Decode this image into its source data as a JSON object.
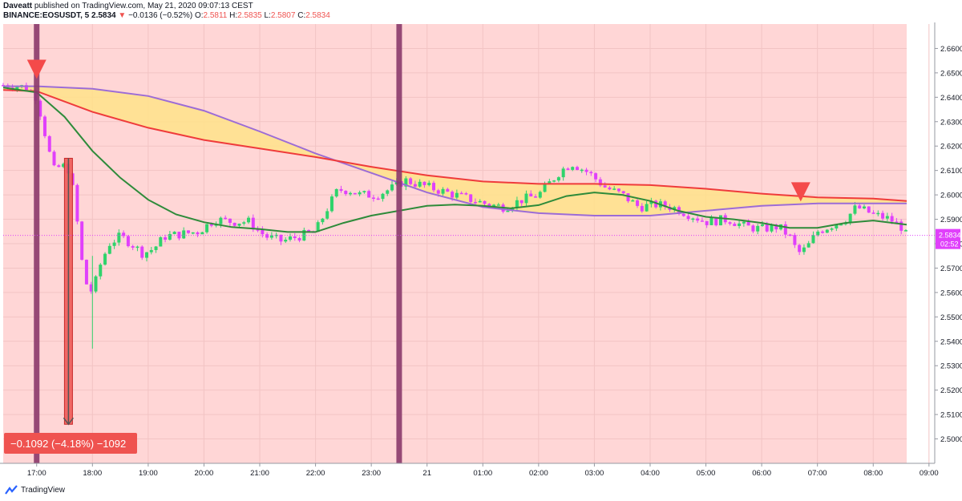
{
  "header": {
    "author": "Daveatt",
    "published": "published on TradingView.com, May 21, 2020 09:07:13 CEST",
    "symbol": "BINANCE:EOSUSDT, 5",
    "last": "2.5834",
    "change": "−0.0136 (−0.52%)",
    "o_label": "O:",
    "o": "2.5811",
    "h_label": "H:",
    "h": "2.5835",
    "l_label": "L:",
    "l": "2.5807",
    "c_label": "C:",
    "c": "2.5834"
  },
  "footer": {
    "brand": "TradingView"
  },
  "colors": {
    "background_zone": "#ffd6d6",
    "up": "#2fd36b",
    "down": "#e040fb",
    "slow_ma": "#9c6cd6",
    "red_ma": "#ef3b3b",
    "fast_ma": "#2e8b3a",
    "cloud": "#ffe38a",
    "vertical_bar": "#8b3a6b",
    "signal": "#f44a4a",
    "badge": "#e040fb",
    "measure": "#ef5350"
  },
  "chart_data": {
    "type": "candlestick",
    "ylim": [
      2.49,
      2.67
    ],
    "yticks": [
      "2.6600",
      "2.6500",
      "2.6400",
      "2.6300",
      "2.6200",
      "2.6100",
      "2.6000",
      "2.5900",
      "2.5800",
      "2.5700",
      "2.5600",
      "2.5500",
      "2.5400",
      "2.5300",
      "2.5200",
      "2.5100",
      "2.5000"
    ],
    "xlim": [
      -0.6,
      15.6
    ],
    "xticks": [
      {
        "label": "17:00",
        "x": 0
      },
      {
        "label": "18:00",
        "x": 1
      },
      {
        "label": "19:00",
        "x": 2
      },
      {
        "label": "20:00",
        "x": 3
      },
      {
        "label": "21:00",
        "x": 4
      },
      {
        "label": "22:00",
        "x": 5
      },
      {
        "label": "23:00",
        "x": 6
      },
      {
        "label": "21",
        "x": 7
      },
      {
        "label": "01:00",
        "x": 8
      },
      {
        "label": "02:00",
        "x": 9
      },
      {
        "label": "03:00",
        "x": 10
      },
      {
        "label": "04:00",
        "x": 11
      },
      {
        "label": "05:00",
        "x": 12
      },
      {
        "label": "06:00",
        "x": 13
      },
      {
        "label": "07:00",
        "x": 14
      },
      {
        "label": "08:00",
        "x": 15
      },
      {
        "label": "09:00",
        "x": 16
      }
    ],
    "price_closes": [
      [
        -0.6,
        2.645
      ],
      [
        -0.4,
        2.645
      ],
      [
        -0.2,
        2.644
      ],
      [
        0.0,
        2.64
      ],
      [
        0.15,
        2.625
      ],
      [
        0.3,
        2.61
      ],
      [
        0.45,
        2.612
      ],
      [
        0.6,
        2.61
      ],
      [
        0.75,
        2.585
      ],
      [
        0.85,
        2.565
      ],
      [
        1.0,
        2.56
      ],
      [
        1.15,
        2.572
      ],
      [
        1.3,
        2.58
      ],
      [
        1.5,
        2.583
      ],
      [
        1.7,
        2.58
      ],
      [
        1.9,
        2.576
      ],
      [
        2.1,
        2.578
      ],
      [
        2.3,
        2.583
      ],
      [
        2.6,
        2.584
      ],
      [
        2.9,
        2.585
      ],
      [
        3.2,
        2.59
      ],
      [
        3.5,
        2.589
      ],
      [
        3.8,
        2.589
      ],
      [
        4.1,
        2.583
      ],
      [
        4.4,
        2.581
      ],
      [
        4.7,
        2.583
      ],
      [
        5.0,
        2.585
      ],
      [
        5.2,
        2.594
      ],
      [
        5.4,
        2.602
      ],
      [
        5.6,
        2.602
      ],
      [
        5.8,
        2.6
      ],
      [
        6.1,
        2.6
      ],
      [
        6.4,
        2.603
      ],
      [
        6.6,
        2.606
      ],
      [
        6.9,
        2.604
      ],
      [
        7.2,
        2.602
      ],
      [
        7.5,
        2.6
      ],
      [
        7.8,
        2.598
      ],
      [
        8.1,
        2.596
      ],
      [
        8.4,
        2.595
      ],
      [
        8.7,
        2.598
      ],
      [
        9.0,
        2.6
      ],
      [
        9.2,
        2.605
      ],
      [
        9.4,
        2.61
      ],
      [
        9.6,
        2.613
      ],
      [
        9.9,
        2.609
      ],
      [
        10.2,
        2.603
      ],
      [
        10.5,
        2.6
      ],
      [
        10.8,
        2.595
      ],
      [
        11.1,
        2.596
      ],
      [
        11.4,
        2.595
      ],
      [
        11.7,
        2.592
      ],
      [
        12.0,
        2.589
      ],
      [
        12.4,
        2.59
      ],
      [
        12.7,
        2.587
      ],
      [
        13.0,
        2.586
      ],
      [
        13.3,
        2.587
      ],
      [
        13.5,
        2.583
      ],
      [
        13.65,
        2.576
      ],
      [
        13.8,
        2.578
      ],
      [
        14.0,
        2.585
      ],
      [
        14.3,
        2.588
      ],
      [
        14.5,
        2.59
      ],
      [
        14.7,
        2.595
      ],
      [
        15.0,
        2.592
      ],
      [
        15.3,
        2.59
      ],
      [
        15.5,
        2.587
      ],
      [
        15.6,
        2.583
      ]
    ],
    "series": [
      {
        "values": [
          [
            -0.6,
            2.6445
          ],
          [
            0,
            2.6445
          ],
          [
            1,
            2.6435
          ],
          [
            2,
            2.6405
          ],
          [
            3,
            2.6345
          ],
          [
            4,
            2.626
          ],
          [
            5,
            2.617
          ],
          [
            6,
            2.609
          ],
          [
            7,
            2.601
          ],
          [
            8,
            2.595
          ],
          [
            9,
            2.5925
          ],
          [
            10,
            2.5915
          ],
          [
            11,
            2.5915
          ],
          [
            12,
            2.5935
          ],
          [
            13,
            2.5955
          ],
          [
            14,
            2.5965
          ],
          [
            15,
            2.5965
          ],
          [
            15.6,
            2.5965
          ]
        ]
      },
      {
        "values": [
          [
            -0.6,
            2.643
          ],
          [
            0,
            2.6425
          ],
          [
            1,
            2.634
          ],
          [
            2,
            2.6275
          ],
          [
            3,
            2.6225
          ],
          [
            4,
            2.619
          ],
          [
            5,
            2.6155
          ],
          [
            6,
            2.6115
          ],
          [
            7,
            2.608
          ],
          [
            8,
            2.6055
          ],
          [
            9,
            2.6045
          ],
          [
            10,
            2.6045
          ],
          [
            11,
            2.604
          ],
          [
            12,
            2.6025
          ],
          [
            13,
            2.6005
          ],
          [
            14,
            2.599
          ],
          [
            15,
            2.5985
          ],
          [
            15.6,
            2.5975
          ]
        ]
      },
      {
        "values": [
          [
            -0.6,
            2.644
          ],
          [
            0,
            2.642
          ],
          [
            0.5,
            2.632
          ],
          [
            1,
            2.618
          ],
          [
            1.5,
            2.607
          ],
          [
            2,
            2.598
          ],
          [
            2.5,
            2.592
          ],
          [
            3,
            2.5888
          ],
          [
            3.5,
            2.5868
          ],
          [
            4,
            2.586
          ],
          [
            4.5,
            2.5848
          ],
          [
            5,
            2.5848
          ],
          [
            5.5,
            2.5885
          ],
          [
            6,
            2.5915
          ],
          [
            6.5,
            2.5935
          ],
          [
            7,
            2.5955
          ],
          [
            7.5,
            2.596
          ],
          [
            8,
            2.5955
          ],
          [
            8.5,
            2.5945
          ],
          [
            9,
            2.5958
          ],
          [
            9.5,
            2.5995
          ],
          [
            10,
            2.601
          ],
          [
            10.5,
            2.6
          ],
          [
            11,
            2.5975
          ],
          [
            11.5,
            2.5935
          ],
          [
            12,
            2.591
          ],
          [
            12.5,
            2.59
          ],
          [
            13,
            2.5885
          ],
          [
            13.5,
            2.5865
          ],
          [
            14,
            2.5865
          ],
          [
            14.5,
            2.5885
          ],
          [
            15,
            2.5895
          ],
          [
            15.6,
            2.5878
          ]
        ]
      }
    ],
    "current_price": {
      "value": 2.5834,
      "label": "2.5834",
      "countdown": "02:52"
    },
    "vertical_markers": [
      0.0,
      6.5
    ],
    "signals": [
      {
        "x": 0.0,
        "y": 2.6475
      },
      {
        "x": 13.7,
        "y": 2.5973
      }
    ],
    "measure": {
      "x": 0.57,
      "from": 2.615,
      "to": 2.506,
      "label": "−0.1092 (−4.18%) −1092"
    }
  }
}
